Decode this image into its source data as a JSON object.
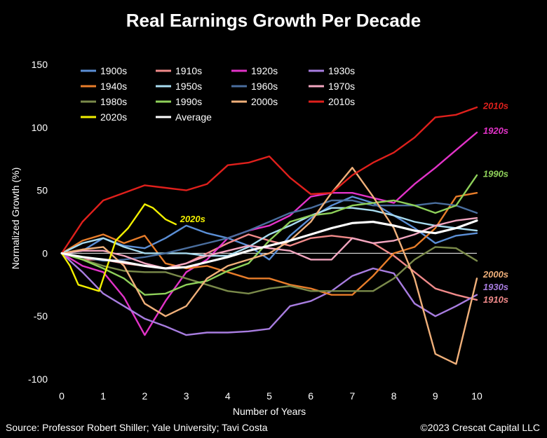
{
  "title": "Real Earnings Growth Per Decade",
  "source": "Source: Professor Robert Shiller; Yale University; Tavi Costa",
  "copyright": "©2023 Crescat Capital LLC",
  "chart_data": {
    "type": "line",
    "xlabel": "Number of Years",
    "ylabel": "Normalized Growth (%)",
    "xlim": [
      0,
      10
    ],
    "ylim": [
      -100,
      150
    ],
    "xticks": [
      0,
      1,
      2,
      3,
      4,
      5,
      6,
      7,
      8,
      9,
      10
    ],
    "yticks": [
      -100,
      -50,
      0,
      50,
      100,
      150
    ],
    "grid": false,
    "legend_position": "top-left",
    "series": [
      {
        "name": "1900s",
        "color": "#5b8fd6",
        "x": [
          0,
          0.5,
          1,
          1.5,
          2,
          2.5,
          3,
          3.5,
          4,
          4.5,
          5,
          5.5,
          6,
          6.5,
          7,
          7.5,
          8,
          8.5,
          9,
          9.5,
          10
        ],
        "y": [
          0,
          2,
          12,
          6,
          4,
          12,
          22,
          16,
          12,
          6,
          -5,
          14,
          28,
          38,
          45,
          40,
          30,
          20,
          8,
          14,
          16
        ]
      },
      {
        "name": "1910s",
        "color": "#f08a8a",
        "x": [
          0,
          0.5,
          1,
          1.5,
          2,
          2.5,
          3,
          3.5,
          4,
          4.5,
          5,
          5.5,
          6,
          6.5,
          7,
          7.5,
          8,
          8.5,
          9,
          9.5,
          10
        ],
        "y": [
          0,
          -5,
          -5,
          -8,
          -10,
          -12,
          -8,
          0,
          8,
          15,
          10,
          6,
          12,
          14,
          12,
          8,
          -2,
          -15,
          -28,
          -33,
          -37
        ]
      },
      {
        "name": "1920s",
        "color": "#e233c8",
        "x": [
          0,
          0.5,
          1,
          1.5,
          2,
          2.5,
          3,
          3.5,
          4,
          4.5,
          5,
          5.5,
          6,
          6.5,
          7,
          7.5,
          8,
          8.5,
          9,
          9.5,
          10
        ],
        "y": [
          0,
          -10,
          -15,
          -35,
          -65,
          -38,
          -15,
          -5,
          12,
          18,
          22,
          30,
          45,
          48,
          48,
          44,
          40,
          55,
          68,
          82,
          96
        ]
      },
      {
        "name": "1930s",
        "color": "#a87de0",
        "x": [
          0,
          0.5,
          1,
          1.5,
          2,
          2.5,
          3,
          3.5,
          4,
          4.5,
          5,
          5.5,
          6,
          6.5,
          7,
          7.5,
          8,
          8.5,
          9,
          9.5,
          10
        ],
        "y": [
          0,
          -15,
          -32,
          -42,
          -52,
          -58,
          -65,
          -63,
          -63,
          -62,
          -60,
          -42,
          -38,
          -30,
          -18,
          -12,
          -16,
          -40,
          -50,
          -42,
          -33
        ]
      },
      {
        "name": "1940s",
        "color": "#e87d2a",
        "x": [
          0,
          0.5,
          1,
          1.5,
          2,
          2.5,
          3,
          3.5,
          4,
          4.5,
          5,
          5.5,
          6,
          6.5,
          7,
          7.5,
          8,
          8.5,
          9,
          9.5,
          10
        ],
        "y": [
          0,
          10,
          15,
          8,
          14,
          -8,
          -12,
          -10,
          -15,
          -20,
          -20,
          -25,
          -28,
          -33,
          -33,
          -18,
          0,
          5,
          20,
          45,
          48
        ]
      },
      {
        "name": "1950s",
        "color": "#a8dcf0",
        "x": [
          0,
          0.5,
          1,
          1.5,
          2,
          2.5,
          3,
          3.5,
          4,
          4.5,
          5,
          5.5,
          6,
          6.5,
          7,
          7.5,
          8,
          8.5,
          9,
          9.5,
          10
        ],
        "y": [
          0,
          8,
          12,
          5,
          0,
          0,
          0,
          -2,
          -2,
          5,
          15,
          22,
          30,
          36,
          36,
          34,
          30,
          25,
          22,
          20,
          18
        ]
      },
      {
        "name": "1960s",
        "color": "#4a6e9e",
        "x": [
          0,
          0.5,
          1,
          1.5,
          2,
          2.5,
          3,
          3.5,
          4,
          4.5,
          5,
          5.5,
          6,
          6.5,
          7,
          7.5,
          8,
          8.5,
          9,
          9.5,
          10
        ],
        "y": [
          0,
          -3,
          -6,
          -5,
          -3,
          0,
          4,
          8,
          12,
          18,
          25,
          32,
          36,
          42,
          42,
          38,
          38,
          38,
          40,
          38,
          32
        ]
      },
      {
        "name": "1970s",
        "color": "#f2a6c0",
        "x": [
          0,
          0.5,
          1,
          1.5,
          2,
          2.5,
          3,
          3.5,
          4,
          4.5,
          5,
          5.5,
          6,
          6.5,
          7,
          7.5,
          8,
          8.5,
          9,
          9.5,
          10
        ],
        "y": [
          0,
          2,
          2,
          -2,
          -8,
          -12,
          -8,
          -2,
          2,
          6,
          4,
          2,
          -5,
          -5,
          12,
          8,
          10,
          15,
          22,
          26,
          28
        ]
      },
      {
        "name": "1980s",
        "color": "#7a8a4a",
        "x": [
          0,
          0.5,
          1,
          1.5,
          2,
          2.5,
          3,
          3.5,
          4,
          4.5,
          5,
          5.5,
          6,
          6.5,
          7,
          7.5,
          8,
          8.5,
          9,
          9.5,
          10
        ],
        "y": [
          0,
          -5,
          -10,
          -14,
          -15,
          -15,
          -20,
          -25,
          -30,
          -32,
          -28,
          -26,
          -30,
          -30,
          -30,
          -30,
          -20,
          -5,
          5,
          4,
          -6
        ]
      },
      {
        "name": "1990s",
        "color": "#8fd15a",
        "x": [
          0,
          0.5,
          1,
          1.5,
          2,
          2.5,
          3,
          3.5,
          4,
          4.5,
          5,
          5.5,
          6,
          6.5,
          7,
          7.5,
          8,
          8.5,
          9,
          9.5,
          10
        ],
        "y": [
          0,
          -5,
          -12,
          -20,
          -33,
          -32,
          -25,
          -22,
          -14,
          -8,
          10,
          25,
          30,
          32,
          38,
          40,
          42,
          38,
          32,
          38,
          62
        ]
      },
      {
        "name": "2000s",
        "color": "#f0b07a",
        "x": [
          0,
          0.5,
          1,
          1.5,
          2,
          2.5,
          3,
          3.5,
          4,
          4.5,
          5,
          5.5,
          6,
          6.5,
          7,
          7.5,
          8,
          8.5,
          9,
          9.5,
          10
        ],
        "y": [
          0,
          3,
          5,
          -10,
          -40,
          -50,
          -42,
          -20,
          -10,
          -5,
          0,
          10,
          25,
          48,
          68,
          45,
          20,
          -20,
          -80,
          -88,
          -20
        ]
      },
      {
        "name": "2010s",
        "color": "#e0201c",
        "x": [
          0,
          0.5,
          1,
          1.5,
          2,
          2.5,
          3,
          3.5,
          4,
          4.5,
          5,
          5.5,
          6,
          6.5,
          7,
          7.5,
          8,
          8.5,
          9,
          9.5,
          10
        ],
        "y": [
          0,
          25,
          42,
          48,
          54,
          52,
          50,
          55,
          70,
          72,
          77,
          60,
          47,
          48,
          62,
          72,
          80,
          92,
          108,
          110,
          116
        ]
      },
      {
        "name": "2020s",
        "color": "#f2f000",
        "x": [
          0,
          0.2,
          0.4,
          0.9,
          1.3,
          1.6,
          2.0,
          2.2,
          2.5,
          2.75
        ],
        "y": [
          0,
          -10,
          -25,
          -30,
          10,
          20,
          39,
          36,
          27,
          23
        ]
      },
      {
        "name": "Average",
        "color": "#ffffff",
        "x": [
          0,
          0.5,
          1,
          1.5,
          2,
          2.5,
          3,
          3.5,
          4,
          4.5,
          5,
          5.5,
          6,
          6.5,
          7,
          7.5,
          8,
          8.5,
          9,
          9.5,
          10
        ],
        "y": [
          0,
          -3,
          -5,
          -7,
          -10,
          -12,
          -11,
          -7,
          -3,
          2,
          6,
          10,
          15,
          20,
          24,
          25,
          22,
          18,
          16,
          20,
          26
        ]
      }
    ],
    "annotations": [
      {
        "text": "2010s",
        "x": 10.15,
        "y": 117,
        "color": "#e0201c"
      },
      {
        "text": "1920s",
        "x": 10.15,
        "y": 97,
        "color": "#e233c8"
      },
      {
        "text": "1990s",
        "x": 10.15,
        "y": 63,
        "color": "#8fd15a"
      },
      {
        "text": "2020s",
        "x": 2.85,
        "y": 27,
        "color": "#f2f000"
      },
      {
        "text": "2000s",
        "x": 10.15,
        "y": -17,
        "color": "#f0b07a"
      },
      {
        "text": "1930s",
        "x": 10.15,
        "y": -27,
        "color": "#a87de0"
      },
      {
        "text": "1910s",
        "x": 10.15,
        "y": -37,
        "color": "#f08a8a"
      }
    ]
  }
}
